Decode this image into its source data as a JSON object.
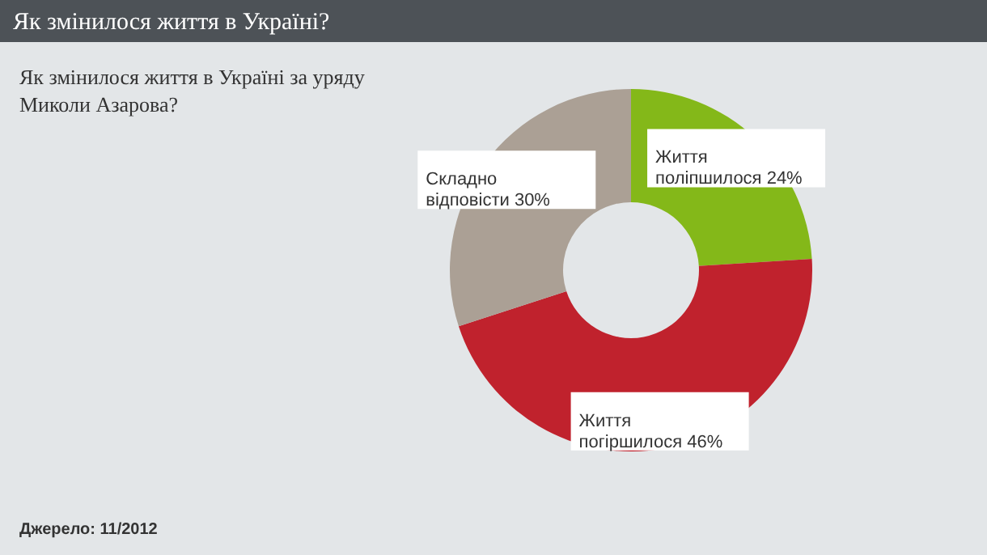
{
  "chart_data": {
    "type": "donut",
    "title": "Як змінилося життя в Україні?",
    "subtitle": "Як змінилося життя в Україні за уряду Миколи Азарова?",
    "categories": [
      "Життя поліпшилося",
      "Життя погіршилося",
      "Складно відповісти"
    ],
    "values": [
      24,
      46,
      30
    ],
    "colors": [
      "#84b819",
      "#c0222d",
      "#aba095"
    ],
    "value_labels": [
      "24%",
      "46%",
      "30%"
    ],
    "annotations": [
      "Джерело: 11/2012"
    ]
  }
}
